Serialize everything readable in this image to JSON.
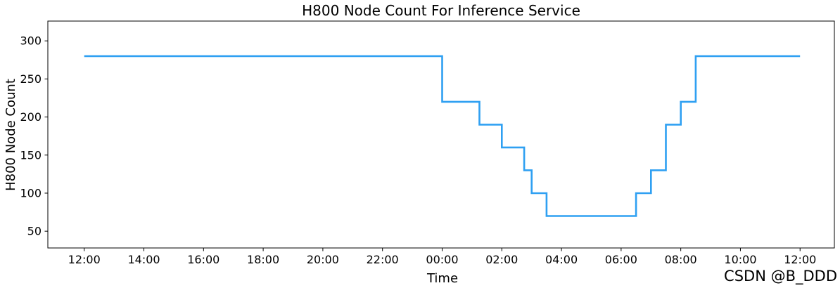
{
  "chart_data": {
    "type": "step-line",
    "title": "H800 Node Count For Inference Service",
    "xlabel": "Time",
    "ylabel": "H800 Node Count",
    "x_tick_labels": [
      "12:00",
      "14:00",
      "16:00",
      "18:00",
      "20:00",
      "22:00",
      "00:00",
      "02:00",
      "04:00",
      "06:00",
      "08:00",
      "10:00",
      "12:00"
    ],
    "x_tick_hours": [
      0,
      2,
      4,
      6,
      8,
      10,
      12,
      14,
      16,
      18,
      20,
      22,
      24
    ],
    "y_ticks": [
      50,
      100,
      150,
      200,
      250,
      300
    ],
    "xlim_hours": [
      -1.22,
      25.15
    ],
    "ylim": [
      28,
      326
    ],
    "grid": false,
    "legend": "none",
    "line_color": "#2fa0f2",
    "line_width": 2.6,
    "axis_color": "#000000",
    "series": [
      {
        "step": "post",
        "points": [
          {
            "time": "12:00",
            "hour": 0,
            "value": 280
          },
          {
            "time": "00:00",
            "hour": 12,
            "value": 220
          },
          {
            "time": "01:15",
            "hour": 13.25,
            "value": 190
          },
          {
            "time": "02:00",
            "hour": 14,
            "value": 160
          },
          {
            "time": "02:45",
            "hour": 14.75,
            "value": 130
          },
          {
            "time": "03:00",
            "hour": 15,
            "value": 100
          },
          {
            "time": "03:30",
            "hour": 15.5,
            "value": 70
          },
          {
            "time": "06:30",
            "hour": 18.5,
            "value": 100
          },
          {
            "time": "07:00",
            "hour": 19,
            "value": 130
          },
          {
            "time": "07:30",
            "hour": 19.5,
            "value": 190
          },
          {
            "time": "08:00",
            "hour": 20,
            "value": 220
          },
          {
            "time": "08:30",
            "hour": 20.5,
            "value": 280
          },
          {
            "time": "12:00",
            "hour": 24,
            "value": 280
          }
        ]
      }
    ]
  },
  "watermark": {
    "text": "CSDN @B_DDD",
    "color": "#d7d7d7"
  }
}
